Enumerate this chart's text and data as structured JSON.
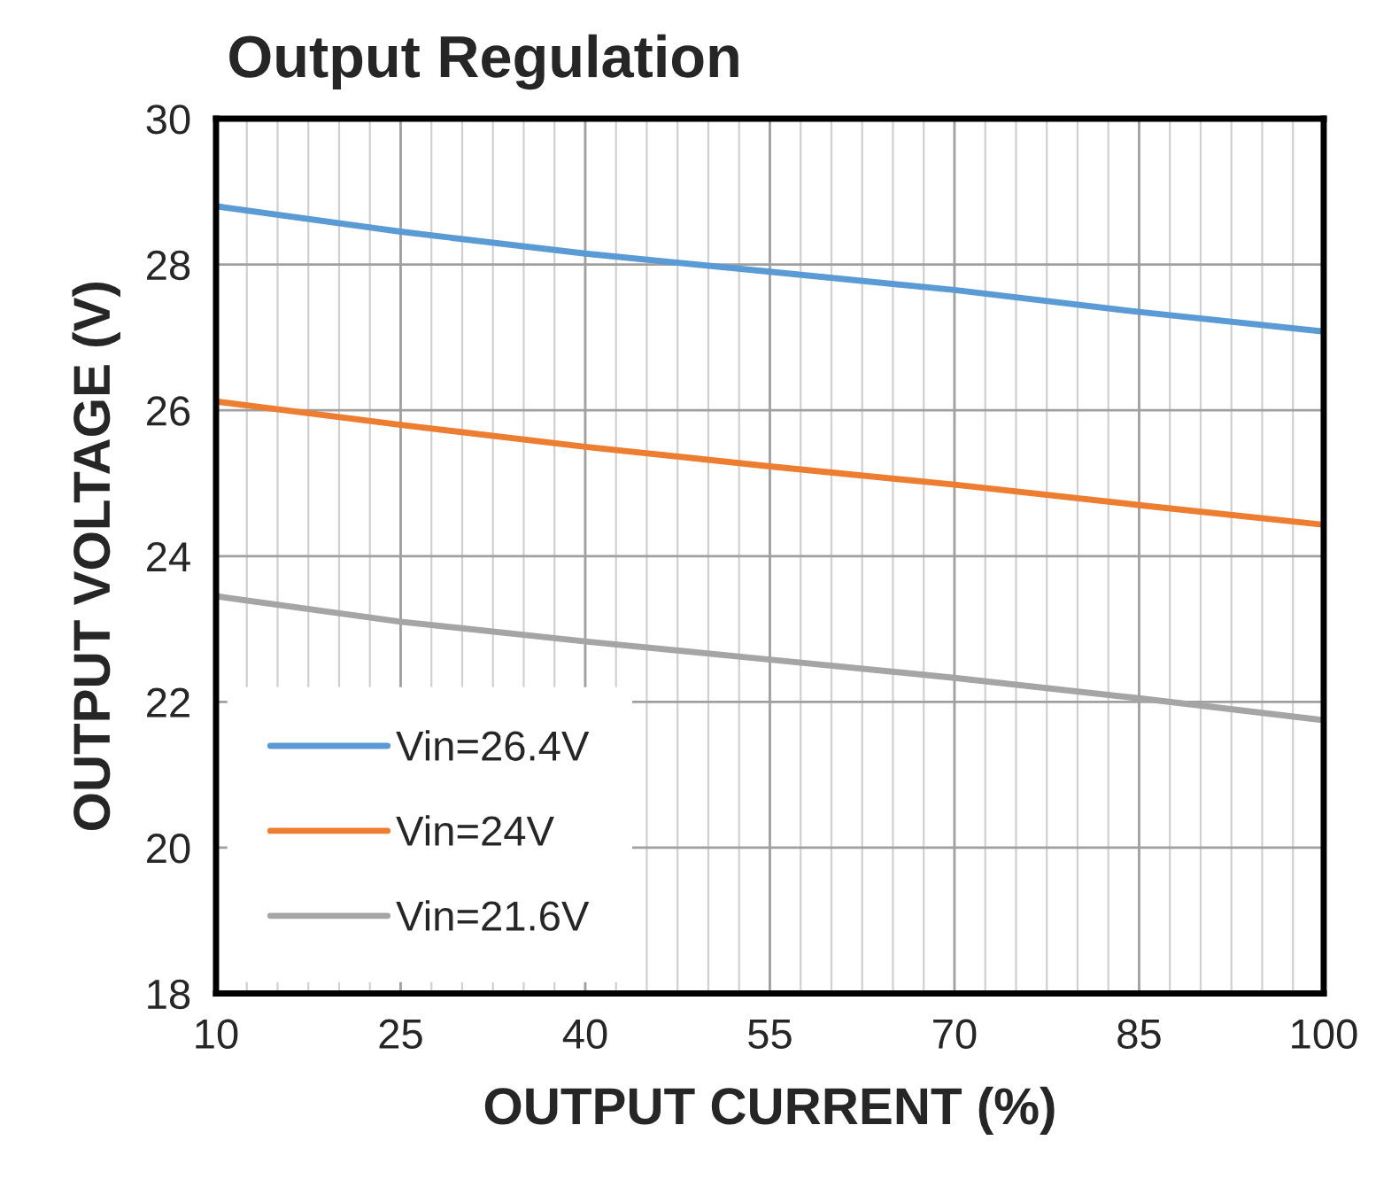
{
  "chart_data": {
    "type": "line",
    "title": "Output Regulation",
    "xlabel": "OUTPUT CURRENT (%)",
    "ylabel": "OUTPUT VOLTAGE (V)",
    "x": [
      10,
      25,
      40,
      55,
      70,
      85,
      100
    ],
    "series": [
      {
        "name": "Vin=26.4V",
        "color": "#5b9bd5",
        "values": [
          28.8,
          28.45,
          28.15,
          27.9,
          27.65,
          27.35,
          27.08
        ]
      },
      {
        "name": "Vin=24V",
        "color": "#ed7d31",
        "values": [
          26.12,
          25.8,
          25.5,
          25.23,
          24.98,
          24.7,
          24.43
        ]
      },
      {
        "name": "Vin=21.6V",
        "color": "#a5a5a5",
        "values": [
          23.45,
          23.1,
          22.83,
          22.58,
          22.33,
          22.05,
          21.75
        ]
      }
    ],
    "xlim": [
      10,
      100
    ],
    "xticks": [
      10,
      25,
      40,
      55,
      70,
      85,
      100
    ],
    "ylim": [
      18,
      30
    ],
    "yticks": [
      18,
      20,
      22,
      24,
      26,
      28,
      30
    ],
    "grid": true,
    "legend": "bottom left",
    "marker": "none",
    "line_style": "solid"
  }
}
